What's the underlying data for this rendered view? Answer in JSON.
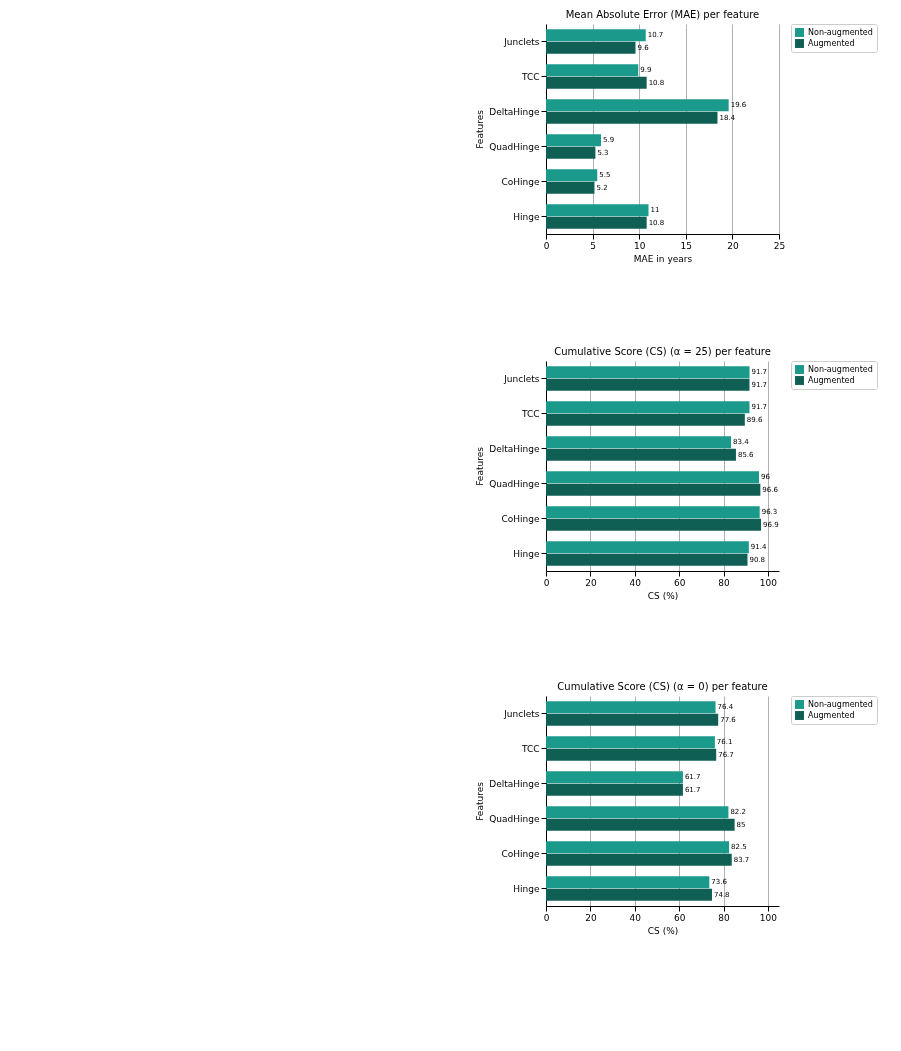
{
  "chart_data": [
    {
      "type": "bar",
      "orientation": "horizontal",
      "title": "Mean Absolute Error (MAE) per feature",
      "xlabel": "MAE in years",
      "ylabel": "Features",
      "categories": [
        "Junclets",
        "TCC",
        "DeltaHinge",
        "QuadHinge",
        "CoHinge",
        "Hinge"
      ],
      "series": [
        {
          "name": "Non-augmented",
          "color": "#1b998b",
          "values": [
            10.7,
            9.9,
            19.6,
            5.9,
            5.5,
            11
          ]
        },
        {
          "name": "Augmented",
          "color": "#0f5f55",
          "values": [
            9.6,
            10.8,
            18.4,
            5.3,
            5.2,
            10.8
          ]
        }
      ],
      "xlim": [
        0,
        25
      ],
      "xticks": [
        0,
        5,
        10,
        15,
        20,
        25
      ],
      "grid": "x",
      "legend": "top right",
      "data_labels": true
    },
    {
      "type": "bar",
      "orientation": "horizontal",
      "title": "Cumulative Score (CS) (α = 25) per feature",
      "xlabel": "CS (%)",
      "ylabel": "Features",
      "categories": [
        "Junclets",
        "TCC",
        "DeltaHinge",
        "QuadHinge",
        "CoHinge",
        "Hinge"
      ],
      "series": [
        {
          "name": "Non-augmented",
          "color": "#1b998b",
          "values": [
            91.7,
            91.7,
            83.4,
            96,
            96.3,
            91.4
          ]
        },
        {
          "name": "Augmented",
          "color": "#0f5f55",
          "values": [
            91.7,
            89.6,
            85.6,
            96.6,
            96.9,
            90.8
          ]
        }
      ],
      "xlim": [
        0,
        105
      ],
      "xticks": [
        0,
        20,
        40,
        60,
        80,
        100
      ],
      "grid": "x",
      "legend": "top right",
      "data_labels": true
    },
    {
      "type": "bar",
      "orientation": "horizontal",
      "title": "Cumulative Score (CS) (α = 0) per feature",
      "xlabel": "CS (%)",
      "ylabel": "Features",
      "categories": [
        "Junclets",
        "TCC",
        "DeltaHinge",
        "QuadHinge",
        "CoHinge",
        "Hinge"
      ],
      "series": [
        {
          "name": "Non-augmented",
          "color": "#1b998b",
          "values": [
            76.4,
            76.1,
            61.7,
            82.2,
            82.5,
            73.6
          ]
        },
        {
          "name": "Augmented",
          "color": "#0f5f55",
          "values": [
            77.6,
            76.7,
            61.7,
            85,
            83.7,
            74.8
          ]
        }
      ],
      "xlim": [
        0,
        105
      ],
      "xticks": [
        0,
        20,
        40,
        60,
        80,
        100
      ],
      "grid": "x",
      "legend": "top right",
      "data_labels": true
    }
  ]
}
